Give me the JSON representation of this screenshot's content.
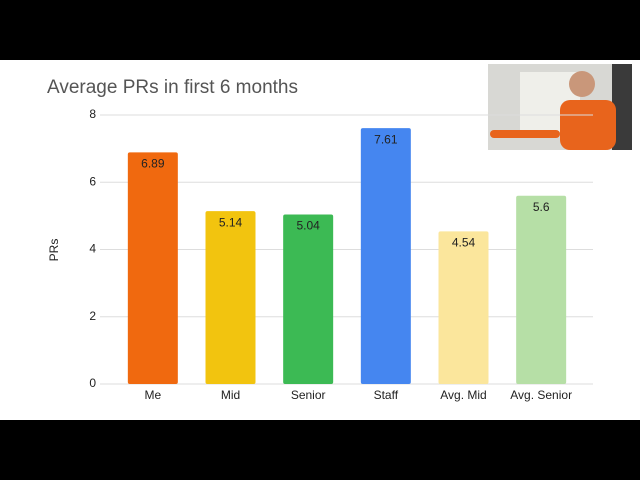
{
  "chart_data": {
    "type": "bar",
    "title": "Average PRs in first 6 months",
    "y_label": "PRs",
    "categories": [
      "Me",
      "Mid",
      "Senior",
      "Staff",
      "Avg. Mid",
      "Avg. Senior"
    ],
    "values": [
      6.89,
      5.14,
      5.04,
      7.61,
      4.54,
      5.6
    ],
    "colors": [
      "#f0690f",
      "#f2c40f",
      "#3cba54",
      "#4586f0",
      "#fbe69c",
      "#b6dfa6"
    ],
    "ylim": [
      0,
      8
    ],
    "yticks": [
      0,
      2,
      4,
      6,
      8
    ],
    "grid": true
  }
}
